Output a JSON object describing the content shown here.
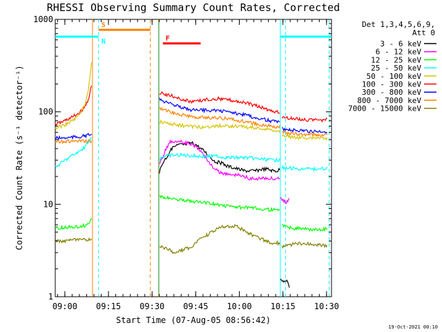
{
  "chart_data": {
    "type": "line",
    "title": "RHESSI Observing Summary Count Rates, Corrected",
    "ylabel": "Corrected Count Rate (s⁻¹ detector⁻¹)",
    "xlabel": "Start Time (07-Aug-05 08:56:42)",
    "footer": "19-Oct-2021 00:10",
    "y_scale": "log",
    "ylim": [
      1,
      1000
    ],
    "y_ticks": [
      {
        "value": 1,
        "label": "1"
      },
      {
        "value": 10,
        "label": "10"
      },
      {
        "value": 100,
        "label": "100"
      },
      {
        "value": 1000,
        "label": "1000"
      }
    ],
    "x_unit": "minutes after 08:56:42",
    "xlim": [
      0,
      95
    ],
    "x_ticks": [
      {
        "value": 3.3,
        "label": "09:00"
      },
      {
        "value": 18.3,
        "label": "09:15"
      },
      {
        "value": 33.3,
        "label": "09:30"
      },
      {
        "value": 48.3,
        "label": "09:45"
      },
      {
        "value": 63.3,
        "label": "10:00"
      },
      {
        "value": 78.3,
        "label": "10:15"
      },
      {
        "value": 93.3,
        "label": "10:30"
      }
    ],
    "legend": {
      "header": [
        "Det 1,3,4,5,6,9,",
        "Att 0"
      ],
      "placement": "right"
    },
    "series": [
      {
        "name": "3 - 6 keV",
        "color": "#000000",
        "x": [
          35.8,
          36.5,
          37.5,
          38.5,
          39.5,
          41.0,
          42.5,
          44.0,
          45.5,
          47.0,
          48.5,
          50.0,
          51.5,
          53.0,
          55.0,
          57.0,
          59.0,
          61.0,
          63.0,
          65.0,
          67.0,
          69.0,
          71.0,
          73.0,
          75.0,
          76.5,
          77.2
        ],
        "y": [
          22,
          26,
          30,
          33,
          38,
          42,
          44,
          44,
          45,
          46,
          44,
          40,
          37,
          33,
          29,
          28,
          26,
          25,
          24,
          23,
          23,
          23,
          24,
          24,
          23,
          23,
          24
        ]
      },
      {
        "name": "6 - 12 keV",
        "color": "#ff00ff",
        "x": [
          35.8,
          36.5,
          37.5,
          38.5,
          39.5,
          41.0,
          42.5,
          44.0,
          45.5,
          47.0,
          48.5,
          50.0,
          51.5,
          53.0,
          55.0,
          57.0,
          59.0,
          61.0,
          63.0,
          65.0,
          67.0,
          69.0,
          71.0,
          73.0,
          75.0,
          76.5,
          77.2
        ],
        "y": [
          26,
          30,
          36,
          42,
          47,
          48,
          48,
          47,
          46,
          44,
          42,
          38,
          33,
          28,
          24,
          22,
          21,
          21,
          21,
          20,
          19,
          19,
          19,
          19,
          19,
          19,
          19
        ]
      },
      {
        "name": "12 - 25 keV",
        "color": "#00ff00",
        "x": [
          35.8,
          40.0,
          45.0,
          50.0,
          55.0,
          60.0,
          65.0,
          70.0,
          75.0,
          77.2
        ],
        "y": [
          12,
          11.5,
          11,
          10.5,
          10,
          9.5,
          9.2,
          9.0,
          8.7,
          8.5
        ]
      },
      {
        "name": "25 - 50 keV",
        "color": "#00ffff",
        "x": [
          35.8,
          37.0,
          40.0,
          45.0,
          50.0,
          55.0,
          60.0,
          65.0,
          70.0,
          75.0,
          77.2
        ],
        "y": [
          31,
          33,
          34,
          34,
          33,
          33,
          32,
          32,
          31,
          30,
          30
        ]
      },
      {
        "name": "50 - 100 keV",
        "color": "#d4c400",
        "x": [
          35.8,
          40.0,
          45.0,
          50.0,
          55.0,
          60.0,
          65.0,
          70.0,
          75.0,
          77.2
        ],
        "y": [
          78,
          74,
          70,
          68,
          70,
          70,
          69,
          66,
          63,
          61
        ]
      },
      {
        "name": "100 - 300 keV",
        "color": "#ff0000",
        "x": [
          35.8,
          38.0,
          41.0,
          44.0,
          47.0,
          50.0,
          53.0,
          56.0,
          59.0,
          62.0,
          65.0,
          68.0,
          71.0,
          74.0,
          77.2
        ],
        "y": [
          160,
          155,
          145,
          135,
          128,
          133,
          137,
          139,
          136,
          132,
          126,
          119,
          112,
          104,
          98
        ]
      },
      {
        "name": "300 - 800 keV",
        "color": "#0000ff",
        "x": [
          35.8,
          38.0,
          41.0,
          44.0,
          47.0,
          50.0,
          53.0,
          56.0,
          59.0,
          62.0,
          65.0,
          68.0,
          71.0,
          74.0,
          77.2
        ],
        "y": [
          138,
          128,
          118,
          110,
          104,
          104,
          104,
          103,
          100,
          97,
          93,
          88,
          84,
          80,
          77
        ]
      },
      {
        "name": "800 - 7000 keV",
        "color": "#ff8000",
        "x": [
          35.8,
          38.0,
          41.0,
          44.0,
          47.0,
          50.0,
          53.0,
          56.0,
          59.0,
          62.0,
          65.0,
          68.0,
          71.0,
          74.0,
          77.2
        ],
        "y": [
          112,
          104,
          97,
          92,
          88,
          87,
          87,
          86,
          84,
          82,
          79,
          75,
          72,
          70,
          69
        ]
      },
      {
        "name": "7000 - 15000 keV",
        "color": "#808000",
        "x": [
          35.8,
          38.0,
          41.0,
          44.0,
          47.0,
          50.0,
          53.0,
          56.0,
          59.0,
          62.0,
          65.0,
          68.0,
          71.0,
          74.0,
          77.2
        ],
        "y": [
          3.5,
          3.3,
          3.0,
          3.2,
          3.5,
          4.2,
          4.8,
          5.5,
          5.8,
          5.8,
          5.2,
          4.6,
          4.2,
          3.8,
          3.8
        ]
      }
    ],
    "segments_before": [
      {
        "color": "#ff0000",
        "x": [
          0,
          2,
          4,
          6,
          8,
          10,
          11.5,
          12.5
        ],
        "y": [
          73,
          77,
          82,
          88,
          96,
          110,
          140,
          190
        ]
      },
      {
        "color": "#d4c400",
        "x": [
          0,
          2,
          4,
          6,
          8,
          10,
          11.5,
          12.5
        ],
        "y": [
          66,
          70,
          74,
          80,
          92,
          115,
          180,
          340
        ]
      },
      {
        "color": "#0000ff",
        "x": [
          0,
          3,
          6,
          9,
          12.5
        ],
        "y": [
          52,
          52,
          53,
          54,
          57
        ]
      },
      {
        "color": "#ff8000",
        "x": [
          0,
          3,
          6,
          9,
          12.5
        ],
        "y": [
          48,
          48,
          48,
          48,
          48
        ]
      },
      {
        "color": "#00ffff",
        "x": [
          0,
          2,
          4,
          6,
          8,
          10,
          11.5,
          12.5
        ],
        "y": [
          25,
          28,
          31,
          34,
          37,
          41,
          47,
          52
        ]
      },
      {
        "color": "#00ff00",
        "x": [
          0,
          3,
          6,
          9,
          11,
          12.5
        ],
        "y": [
          5.5,
          5.6,
          5.7,
          5.8,
          6.0,
          7.0
        ]
      },
      {
        "color": "#808000",
        "x": [
          0,
          3,
          6,
          9,
          12.5
        ],
        "y": [
          4.0,
          4.0,
          4.1,
          4.1,
          4.2
        ]
      }
    ],
    "segments_after": [
      {
        "color": "#ff0000",
        "x": [
          78,
          82,
          86,
          90,
          93.5
        ],
        "y": [
          88,
          84,
          82,
          81,
          82
        ]
      },
      {
        "color": "#0000ff",
        "x": [
          78,
          82,
          86,
          90,
          93.5
        ],
        "y": [
          66,
          63,
          62,
          61,
          61
        ]
      },
      {
        "color": "#ff8000",
        "x": [
          78,
          82,
          86,
          90,
          93.5
        ],
        "y": [
          60,
          58,
          57,
          57,
          57
        ]
      },
      {
        "color": "#d4c400",
        "x": [
          78,
          82,
          86,
          90,
          93.5
        ],
        "y": [
          55,
          53,
          52,
          52,
          52
        ]
      },
      {
        "color": "#00ffff",
        "x": [
          78,
          82,
          86,
          90,
          93.5
        ],
        "y": [
          25,
          24.5,
          24,
          24,
          24.5
        ]
      },
      {
        "color": "#00ff00",
        "x": [
          78,
          82,
          86,
          90,
          93.5
        ],
        "y": [
          5.8,
          5.5,
          5.4,
          5.3,
          5.4
        ]
      },
      {
        "color": "#808000",
        "x": [
          78,
          82,
          86,
          90,
          93.5
        ],
        "y": [
          3.5,
          3.7,
          3.8,
          3.6,
          3.6
        ]
      },
      {
        "color": "#ff00ff",
        "x": [
          77.5,
          78.5,
          79.5,
          80.5
        ],
        "y": [
          12,
          11,
          10.5,
          11.5
        ]
      },
      {
        "color": "#000000",
        "x": [
          77.5,
          78.5,
          79.5,
          80.5
        ],
        "y": [
          1.6,
          1.4,
          1.5,
          1.3
        ]
      }
    ],
    "vlines": [
      {
        "x": 12.8,
        "color": "#ff8000",
        "style": "solid"
      },
      {
        "x": 14.9,
        "color": "#00ffff",
        "style": "dashed"
      },
      {
        "x": 32.7,
        "color": "#ff8000",
        "style": "dashed"
      },
      {
        "x": 35.5,
        "color": "#ff8000",
        "style": "solid"
      },
      {
        "x": 35.8,
        "color": "#00ffff",
        "style": "solid"
      },
      {
        "x": 77.4,
        "color": "#00ffff",
        "style": "solid"
      },
      {
        "x": 79.2,
        "color": "#00ffff",
        "style": "dashed"
      },
      {
        "x": 94.2,
        "color": "#00ffff",
        "style": "dashed"
      }
    ],
    "top_bars": [
      {
        "label": "",
        "x1": 0,
        "x2": 14.9,
        "y": 650,
        "color": "#00ffff"
      },
      {
        "label": "N",
        "x1": 14.9,
        "x2": 14.9,
        "y": 650,
        "color": "#00ffff"
      },
      {
        "label": "S",
        "x1": 14.9,
        "x2": 32.7,
        "y": 770,
        "color": "#ff8000"
      },
      {
        "label": "F",
        "x1": 37.0,
        "x2": 50.0,
        "y": 550,
        "color": "#ff0000"
      },
      {
        "label": "",
        "x1": 77.4,
        "x2": 95,
        "y": 650,
        "color": "#00ffff"
      }
    ]
  }
}
